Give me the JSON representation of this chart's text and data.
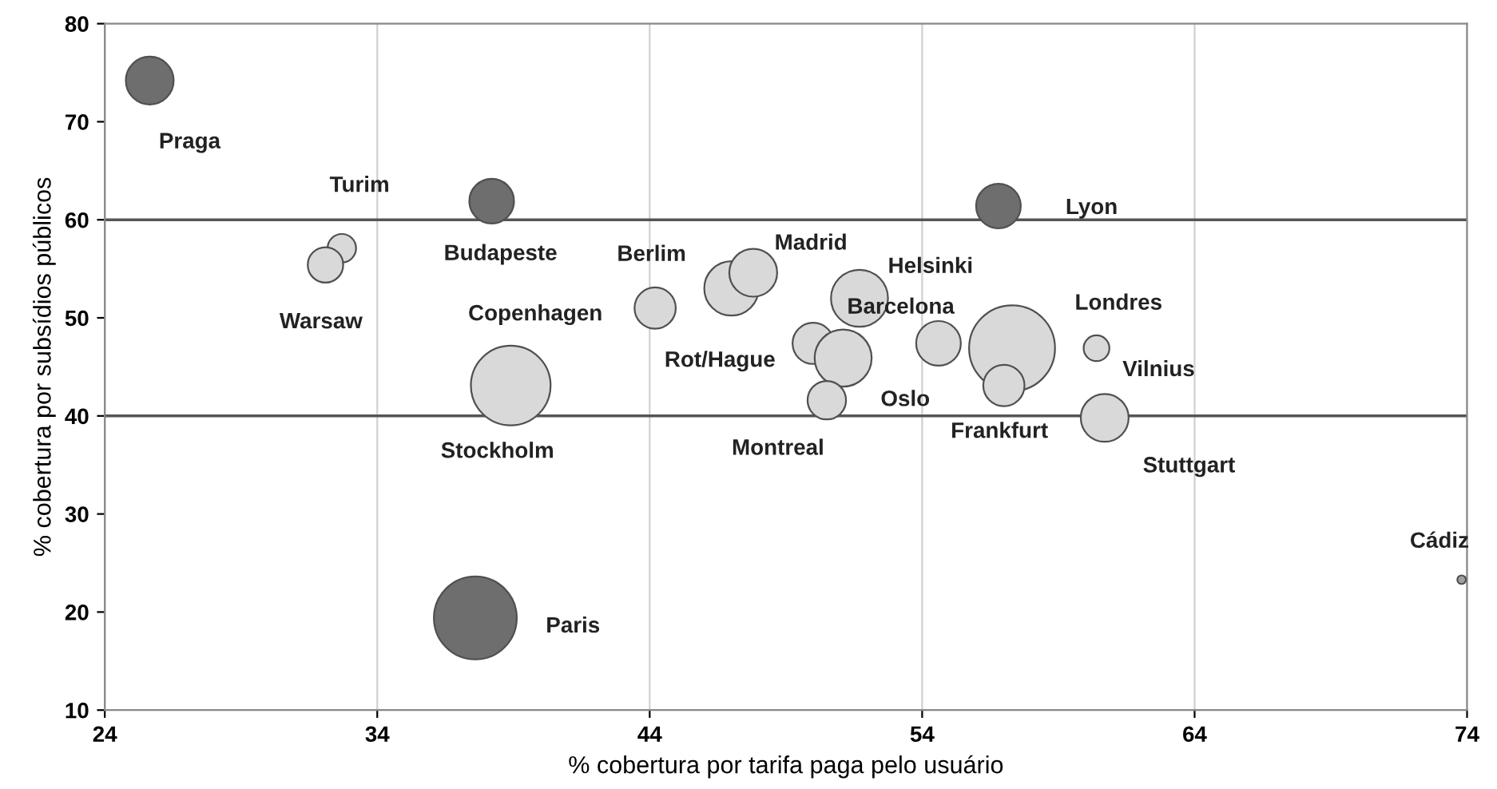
{
  "chart_data": {
    "type": "bubble",
    "xlabel": "% cobertura por tarifa paga pelo usuário",
    "ylabel": "% cobertura por subsídios públicos",
    "series": [
      {
        "name": "Praga",
        "x": [
          25.65
        ],
        "values": [
          74.2
        ],
        "sizes": [
          0.31
        ],
        "color": "#6e6e6e"
      },
      {
        "name": "Turim",
        "x": [
          32.7
        ],
        "values": [
          57.1
        ],
        "sizes": [
          0.11
        ],
        "color": "#d9d9d9"
      },
      {
        "name": "Warsaw",
        "x": [
          32.1
        ],
        "values": [
          55.4
        ],
        "sizes": [
          0.17
        ],
        "color": "#d9d9d9"
      },
      {
        "name": "Budapeste",
        "x": [
          38.2
        ],
        "values": [
          61.9
        ],
        "sizes": [
          0.27
        ],
        "color": "#6e6e6e"
      },
      {
        "name": "Copenhagen",
        "x": [
          44.2
        ],
        "values": [
          51.0
        ],
        "sizes": [
          0.23
        ],
        "color": "#d9d9d9"
      },
      {
        "name": "Berlim",
        "x": [
          47.0
        ],
        "values": [
          53.0
        ],
        "sizes": [
          0.4
        ],
        "color": "#d9d9d9"
      },
      {
        "name": "Madrid",
        "x": [
          47.8
        ],
        "values": [
          54.6
        ],
        "sizes": [
          0.31
        ],
        "color": "#d9d9d9"
      },
      {
        "name": "Helsinki",
        "x": [
          51.7
        ],
        "values": [
          52.0
        ],
        "sizes": [
          0.44
        ],
        "color": "#d9d9d9"
      },
      {
        "name": "Rot/Hague",
        "x": [
          50.0
        ],
        "values": [
          47.4
        ],
        "sizes": [
          0.23
        ],
        "color": "#d9d9d9"
      },
      {
        "name": "Oslo",
        "x": [
          51.1
        ],
        "values": [
          45.9
        ],
        "sizes": [
          0.44
        ],
        "color": "#d9d9d9"
      },
      {
        "name": "Montreal",
        "x": [
          50.5
        ],
        "values": [
          41.6
        ],
        "sizes": [
          0.2
        ],
        "color": "#d9d9d9"
      },
      {
        "name": "Barcelona",
        "x": [
          54.6
        ],
        "values": [
          47.4
        ],
        "sizes": [
          0.27
        ],
        "color": "#d9d9d9"
      },
      {
        "name": "Lyon",
        "x": [
          56.8
        ],
        "values": [
          61.4
        ],
        "sizes": [
          0.27
        ],
        "color": "#6e6e6e"
      },
      {
        "name": "Londres",
        "x": [
          57.3
        ],
        "values": [
          46.9
        ],
        "sizes": [
          1
        ],
        "color": "#d9d9d9"
      },
      {
        "name": "Frankfurt",
        "x": [
          57.0
        ],
        "values": [
          43.1
        ],
        "sizes": [
          0.23
        ],
        "color": "#d9d9d9"
      },
      {
        "name": "Vilnius",
        "x": [
          60.4
        ],
        "values": [
          46.9
        ],
        "sizes": [
          0.09
        ],
        "color": "#d9d9d9"
      },
      {
        "name": "Stuttgart",
        "x": [
          60.7
        ],
        "values": [
          39.8
        ],
        "sizes": [
          0.31
        ],
        "color": "#d9d9d9"
      },
      {
        "name": "Stockholm",
        "x": [
          38.9
        ],
        "values": [
          43.1
        ],
        "sizes": [
          0.86
        ],
        "color": "#d9d9d9"
      },
      {
        "name": "Paris",
        "x": [
          37.6
        ],
        "values": [
          19.4
        ],
        "sizes": [
          0.93
        ],
        "color": "#6e6e6e"
      },
      {
        "name": "Cádiz",
        "x": [
          73.8
        ],
        "values": [
          23.3
        ],
        "sizes": [
          0.01
        ],
        "color": "#a0a0a0"
      }
    ],
    "ref_lines": [
      {
        "axis": "y",
        "value": 40,
        "color": "#555555"
      },
      {
        "axis": "y",
        "value": 60,
        "color": "#555555"
      }
    ],
    "xlim": [
      24,
      74
    ],
    "xticks": [
      24,
      34,
      44,
      54,
      64,
      74
    ],
    "ylim": [
      10,
      80
    ],
    "yticks": [
      10,
      20,
      30,
      40,
      50,
      60,
      70,
      80
    ],
    "grid": "x"
  }
}
